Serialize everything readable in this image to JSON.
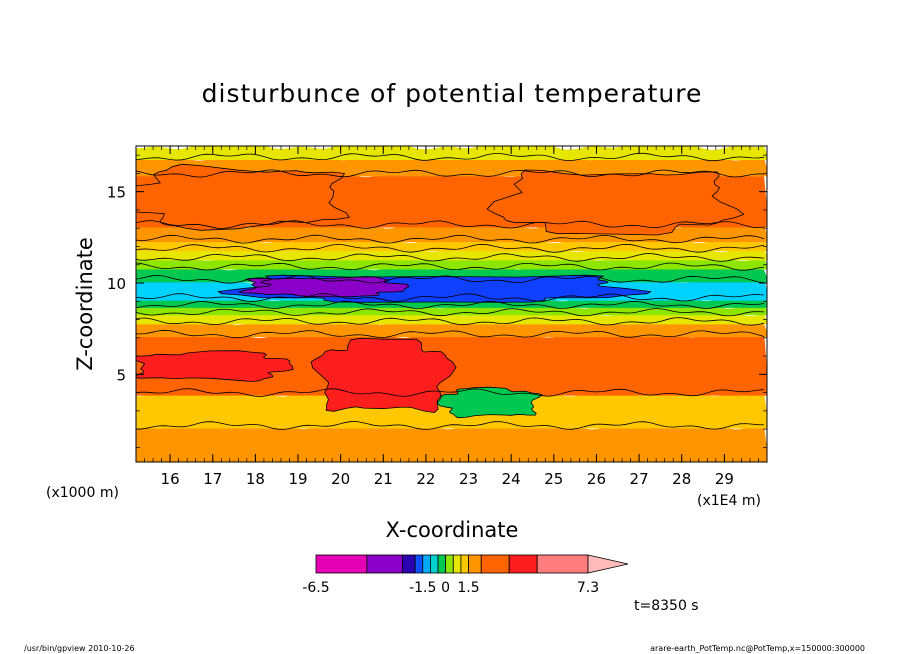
{
  "chart_data": {
    "type": "contour",
    "title": "disturbunce of potential temperature",
    "xlabel": "X-coordinate",
    "ylabel": "Z-coordinate",
    "x_unit_left": "(x1000 m)",
    "x_unit_right": "(x1E4 m)",
    "x_ticks": [
      16,
      17,
      18,
      19,
      20,
      21,
      22,
      23,
      24,
      25,
      26,
      27,
      28,
      29
    ],
    "x_tick_labels": [
      "16",
      "17",
      "18",
      "19",
      "20",
      "21",
      "22",
      "23",
      "24",
      "25",
      "26",
      "27",
      "28",
      "29"
    ],
    "y_ticks": [
      5,
      10,
      15
    ],
    "y_tick_labels": [
      "5",
      "10",
      "15"
    ],
    "xlim": [
      15.2,
      30.0
    ],
    "ylim": [
      0.2,
      17.5
    ],
    "time_label": "t=8350 s",
    "colorbar": {
      "min": -6.5,
      "max": 7.3,
      "labels": [
        "-6.5",
        "-1.5",
        "0",
        "1.5",
        "7.3"
      ],
      "label_values": [
        -6.5,
        -1.5,
        0,
        1.5,
        7.3
      ],
      "levels": [
        -6.5,
        -4.0,
        -2.5,
        -2.0,
        -1.5,
        -1.0,
        -0.5,
        0,
        0.5,
        1.0,
        1.5,
        2.5,
        4.0,
        5.5,
        7.3
      ],
      "colors": [
        "#e600b4",
        "#8a00c8",
        "#2a00b0",
        "#0a50ff",
        "#00aaff",
        "#00d2d2",
        "#00c850",
        "#8ce600",
        "#e6e600",
        "#ffc800",
        "#ff9600",
        "#ff6400",
        "#ff1e1e",
        "#ff7d7d",
        "#ffbaba"
      ]
    },
    "bands": [
      {
        "z_bottom": 0.2,
        "z_top": 2.2,
        "color": "#ff9600"
      },
      {
        "z_bottom": 2.2,
        "z_top": 4.0,
        "color": "#ffc800"
      },
      {
        "z_bottom": 4.0,
        "z_top": 7.2,
        "color": "#ff6400"
      },
      {
        "z_bottom": 7.2,
        "z_top": 7.9,
        "color": "#ff9600"
      },
      {
        "z_bottom": 7.9,
        "z_top": 8.4,
        "color": "#e6e600"
      },
      {
        "z_bottom": 8.4,
        "z_top": 8.8,
        "color": "#8ce600"
      },
      {
        "z_bottom": 8.8,
        "z_top": 9.2,
        "color": "#00c850"
      },
      {
        "z_bottom": 9.2,
        "z_top": 10.2,
        "color": "#00d2ff"
      },
      {
        "z_bottom": 10.2,
        "z_top": 10.9,
        "color": "#00c850"
      },
      {
        "z_bottom": 10.9,
        "z_top": 11.4,
        "color": "#8ce600"
      },
      {
        "z_bottom": 11.4,
        "z_top": 11.9,
        "color": "#e6e600"
      },
      {
        "z_bottom": 11.9,
        "z_top": 12.4,
        "color": "#ffc800"
      },
      {
        "z_bottom": 12.4,
        "z_top": 13.2,
        "color": "#ff9600"
      },
      {
        "z_bottom": 13.2,
        "z_top": 16.0,
        "color": "#ff6400"
      },
      {
        "z_bottom": 16.0,
        "z_top": 16.9,
        "color": "#ff9600"
      },
      {
        "z_bottom": 16.9,
        "z_top": 17.5,
        "color": "#e6e600"
      }
    ],
    "regions": [
      {
        "name": "blue-core",
        "x": [
          17.7,
          26.7
        ],
        "z": [
          9.0,
          10.4
        ],
        "color": "#1040ff"
      },
      {
        "name": "purple-core",
        "x": [
          17.8,
          21.4
        ],
        "z": [
          9.3,
          10.3
        ],
        "color": "#8a00c8"
      },
      {
        "name": "red-lobe-left",
        "x": [
          15.2,
          18.7
        ],
        "z": [
          4.7,
          6.2
        ],
        "color": "#ff1e1e"
      },
      {
        "name": "red-lobe-center",
        "x": [
          19.5,
          22.5
        ],
        "z": [
          3.0,
          6.8
        ],
        "color": "#ff1e1e"
      },
      {
        "name": "green-blob",
        "x": [
          22.4,
          24.6
        ],
        "z": [
          2.7,
          4.2
        ],
        "color": "#00c850"
      },
      {
        "name": "upper-plateau-left",
        "x": [
          15.2,
          20.0
        ],
        "z": [
          13.1,
          16.3
        ],
        "color": "#ff6400"
      },
      {
        "name": "upper-plateau-right",
        "x": [
          23.8,
          29.1
        ],
        "z": [
          12.8,
          16.1
        ],
        "color": "#ff6400"
      }
    ]
  },
  "footer": {
    "left": "/usr/bin/gpview   2010-10-26",
    "right": "arare-earth_PotTemp.nc@PotTemp,x=150000:300000"
  }
}
